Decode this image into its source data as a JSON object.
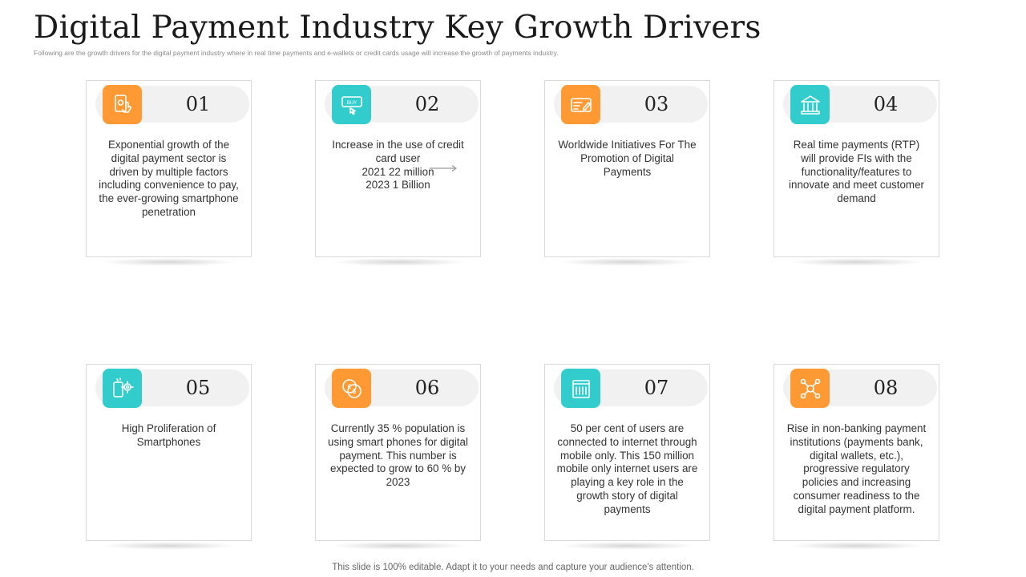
{
  "title": "Digital Payment Industry Key Growth Drivers",
  "subtitle": "Following are the growth drivers for the digital payment industry where in real time payments and e-wallets or credit cards usage will increase the growth of payments industry.",
  "colors": {
    "orange": "#FF9933",
    "teal": "#33CCCC",
    "pill": "#F1F1F1",
    "card_border": "#D9D9D9"
  },
  "cards": [
    {
      "number": "01",
      "icon": "touch-payment-phone-icon",
      "icon_color": "orange",
      "text": "Exponential growth of the digital payment sector is driven by multiple factors including convenience to pay, the ever-growing smartphone penetration"
    },
    {
      "number": "02",
      "icon": "buy-tag-icon",
      "icon_color": "teal",
      "text": "Increase in the use of credit card user",
      "line1": "2021  22 million",
      "line2": "2023 1 Billion"
    },
    {
      "number": "03",
      "icon": "card-payment-icon",
      "icon_color": "orange",
      "text": "Worldwide Initiatives For The Promotion of Digital Payments"
    },
    {
      "number": "04",
      "icon": "bank-icon",
      "icon_color": "teal",
      "text": "Real time payments (RTP) will provide FIs with the functionality/features to innovate and meet customer demand"
    },
    {
      "number": "05",
      "icon": "smartphone-gear-icon",
      "icon_color": "teal",
      "text": "High Proliferation of Smartphones"
    },
    {
      "number": "06",
      "icon": "coins-currency-icon",
      "icon_color": "orange",
      "text": "Currently 35 % population is using smart phones for digital payment. This number is expected to grow to 60 % by 2023"
    },
    {
      "number": "07",
      "icon": "mobile-building-icon",
      "icon_color": "teal",
      "text": "50 per cent of users are connected to internet through mobile only. This 150 million mobile only internet users are playing a key role in the growth story of digital payments"
    },
    {
      "number": "08",
      "icon": "network-nodes-icon",
      "icon_color": "orange",
      "text": "Rise in non-banking payment institutions (payments bank, digital wallets, etc.), progressive regulatory policies and increasing consumer readiness to the digital payment platform."
    }
  ],
  "footer": "This slide is 100% editable. Adapt it to your needs and capture your audience's attention."
}
